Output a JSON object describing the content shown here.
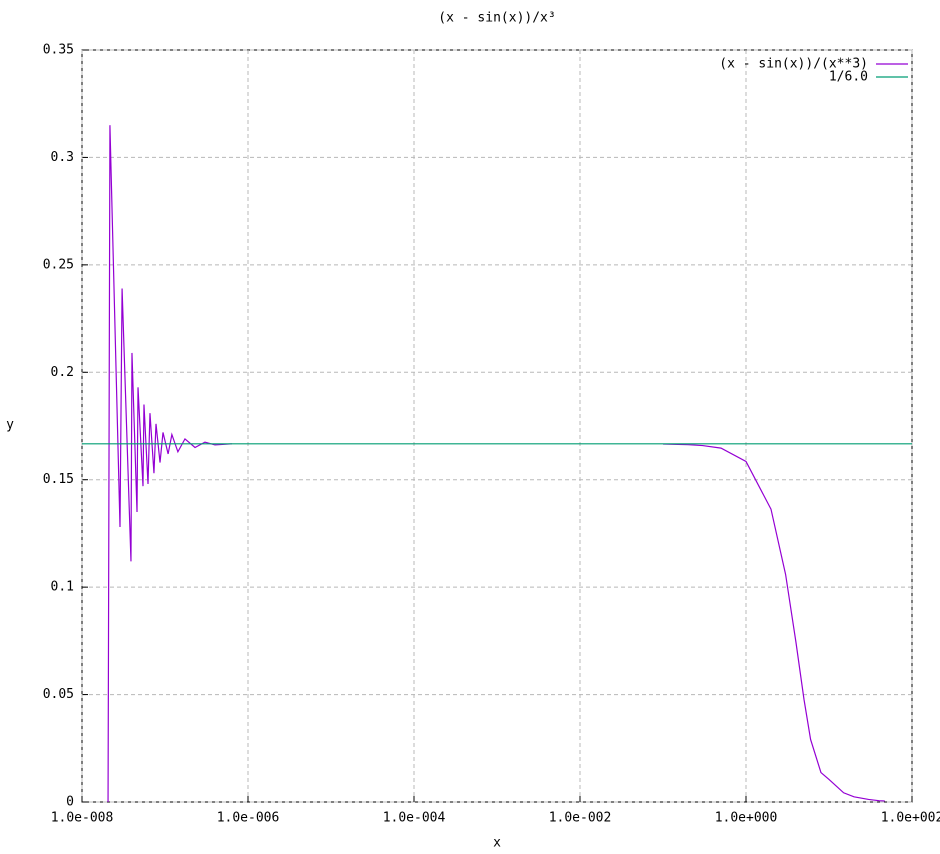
{
  "chart_data": {
    "type": "line",
    "title": "(x - sin(x))/x³",
    "xlabel": "x",
    "ylabel": "y",
    "xlog": true,
    "grid": true,
    "legend": "top-right",
    "xlim": [
      1e-08,
      100
    ],
    "xticks": [
      {
        "value": 1e-08,
        "label": "1.0e-008"
      },
      {
        "value": 1e-06,
        "label": "1.0e-006"
      },
      {
        "value": 0.0001,
        "label": "1.0e-004"
      },
      {
        "value": 0.01,
        "label": "1.0e-002"
      },
      {
        "value": 1,
        "label": "1.0e+000"
      },
      {
        "value": 100,
        "label": "1.0e+002"
      }
    ],
    "ylim": [
      0,
      0.35
    ],
    "yticks": [
      0,
      0.05,
      0.1,
      0.15,
      0.2,
      0.25,
      0.3,
      0.35
    ],
    "series": [
      {
        "name": "(x - sin(x))/(x**3)",
        "color": "#9400d3",
        "x": [
          2.06e-08,
          2.17e-08,
          2.87e-08,
          3.04e-08,
          3.89e-08,
          4e-08,
          4.6e-08,
          4.73e-08,
          5.43e-08,
          5.58e-08,
          6.24e-08,
          6.59e-08,
          7.36e-08,
          7.79e-08,
          8.71e-08,
          9.46e-08,
          1.09e-07,
          1.21e-07,
          1.43e-07,
          1.74e-07,
          2.3e-07,
          3.03e-07,
          4e-07,
          6.41e-07,
          1e-05,
          0.1,
          0.2,
          0.3,
          0.5,
          1,
          2,
          3,
          4,
          5,
          6,
          8,
          10,
          15,
          20,
          30,
          40,
          47
        ],
        "values": [
          0,
          0.315,
          0.128,
          0.239,
          0.112,
          0.209,
          0.135,
          0.193,
          0.147,
          0.185,
          0.148,
          0.181,
          0.153,
          0.176,
          0.158,
          0.172,
          0.162,
          0.171,
          0.163,
          0.169,
          0.165,
          0.1675,
          0.1662,
          0.1667,
          null,
          0.1666,
          0.1663,
          0.1659,
          0.1647,
          0.1585,
          0.1363,
          0.1059,
          0.0743,
          0.0477,
          0.0291,
          0.0137,
          0.0105,
          0.0043,
          0.0024,
          0.0012,
          0.0006,
          0.0005
        ]
      },
      {
        "name": "1/6.0",
        "color": "#009e73",
        "x": [
          1e-08,
          100
        ],
        "values": [
          0.1667,
          0.1667
        ]
      }
    ]
  }
}
